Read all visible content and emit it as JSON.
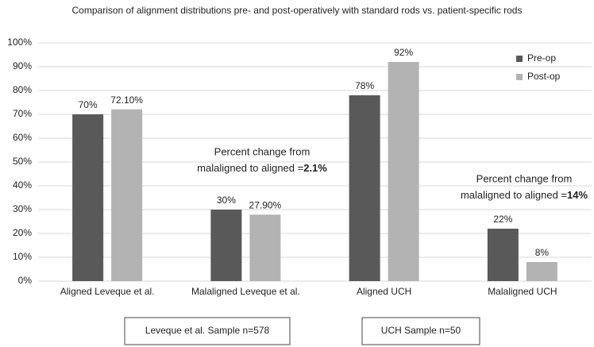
{
  "chart_data": {
    "type": "bar",
    "title": "Comparison of alignment distributions pre- and post-operatively with standard rods vs. patient-specific rods",
    "categories": [
      "Aligned Leveque et al.",
      "Malaligned Leveque et al.",
      "Aligned UCH",
      "Malaligned UCH"
    ],
    "series": [
      {
        "name": "Pre-op",
        "color": "#595959",
        "values": [
          70,
          30,
          78,
          22
        ],
        "value_labels": [
          "70%",
          "30%",
          "78%",
          "22%"
        ]
      },
      {
        "name": "Post-op",
        "color": "#b3b3b3",
        "values": [
          72.1,
          27.9,
          92,
          8
        ],
        "value_labels": [
          "72.10%",
          "27.90%",
          "92%",
          "8%"
        ]
      }
    ],
    "ylim": [
      0,
      100
    ],
    "yticks": [
      {
        "value": 0,
        "label": "0%"
      },
      {
        "value": 10,
        "label": "10%"
      },
      {
        "value": 20,
        "label": "20%"
      },
      {
        "value": 30,
        "label": "30%"
      },
      {
        "value": 40,
        "label": "40%"
      },
      {
        "value": 50,
        "label": "50%"
      },
      {
        "value": 60,
        "label": "60%"
      },
      {
        "value": 70,
        "label": "70%"
      },
      {
        "value": 80,
        "label": "80%"
      },
      {
        "value": 90,
        "label": "90%"
      },
      {
        "value": 100,
        "label": "100%"
      }
    ],
    "grid": true,
    "legend": "top-right",
    "annotations": [
      {
        "lines": [
          "Percent change from",
          "malaligned to aligned ="
        ],
        "bold": "2.1%"
      },
      {
        "lines": [
          "Percent change from",
          "malaligned to aligned ="
        ],
        "bold": "14%"
      }
    ],
    "groups": [
      "Leveque et al. Sample n=578",
      "UCH Sample n=50"
    ]
  }
}
